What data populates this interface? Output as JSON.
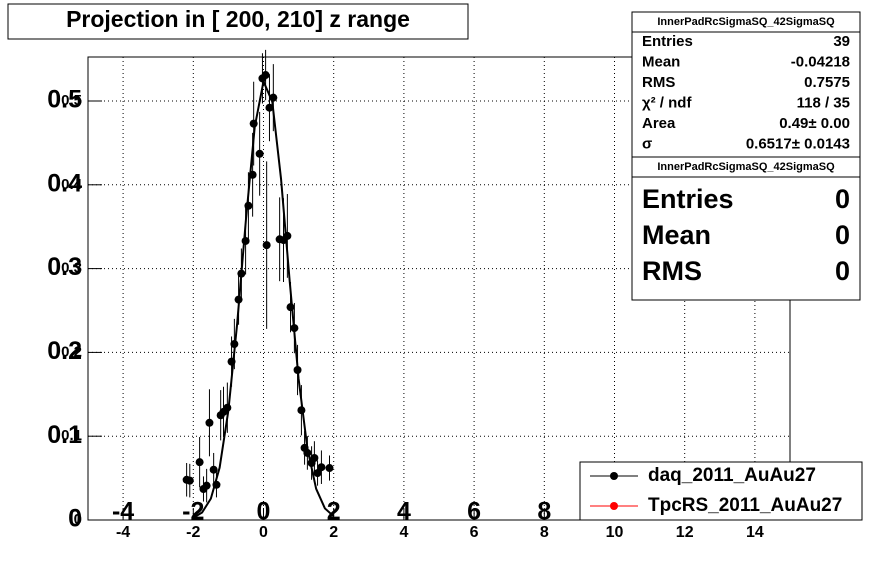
{
  "chart_data": {
    "type": "scatter",
    "title": "Projection in [ 200, 210] z range",
    "xlim": [
      -5,
      15
    ],
    "ylim": [
      0,
      0.5525
    ],
    "xticks": [
      -4,
      -2,
      0,
      2,
      4,
      6,
      8,
      10,
      12,
      14
    ],
    "yticks": [
      0,
      0.1,
      0.2,
      0.3,
      0.4,
      0.5
    ],
    "grid": true,
    "legend": "bottom-right",
    "series": [
      {
        "name": "daq_2011_AuAu27",
        "color": "#000000",
        "x": [
          -2.19,
          -2.1,
          -1.82,
          -1.71,
          -1.62,
          -1.54,
          -1.42,
          -1.34,
          -1.22,
          -1.14,
          -1.03,
          -0.91,
          -0.83,
          -0.71,
          -0.63,
          -0.51,
          -0.43,
          -0.31,
          -0.28,
          -0.11,
          -0.03,
          0.06,
          0.09,
          0.17,
          0.28,
          0.46,
          0.57,
          0.68,
          0.77,
          0.88,
          0.97,
          1.08,
          1.17,
          1.25,
          1.37,
          1.45,
          1.54,
          1.65,
          1.88
        ],
        "values": [
          0.048,
          0.047,
          0.069,
          0.037,
          0.041,
          0.116,
          0.06,
          0.042,
          0.125,
          0.129,
          0.134,
          0.189,
          0.21,
          0.263,
          0.294,
          0.333,
          0.375,
          0.412,
          0.473,
          0.437,
          0.527,
          0.531,
          0.328,
          0.492,
          0.504,
          0.335,
          0.334,
          0.339,
          0.254,
          0.229,
          0.179,
          0.131,
          0.086,
          0.08,
          0.068,
          0.074,
          0.056,
          0.063,
          0.062
        ],
        "errors": [
          0.02,
          0.02,
          0.03,
          0.015,
          0.02,
          0.04,
          0.02,
          0.015,
          0.03,
          0.03,
          0.03,
          0.03,
          0.03,
          0.03,
          0.03,
          0.04,
          0.04,
          0.05,
          0.05,
          0.05,
          0.03,
          0.03,
          0.1,
          0.04,
          0.04,
          0.05,
          0.05,
          0.05,
          0.03,
          0.03,
          0.03,
          0.03,
          0.02,
          0.02,
          0.02,
          0.02,
          0.015,
          0.02,
          0.015
        ]
      },
      {
        "name": "TpcRS_2011_AuAu27",
        "color": "#ff0000",
        "x": [],
        "values": [],
        "errors": []
      }
    ],
    "fit": {
      "color": "#000000",
      "x": [
        -2,
        -1.75,
        -1.5,
        -1.25,
        -1,
        -0.75,
        -0.5,
        -0.25,
        0,
        0.25,
        0.5,
        0.75,
        1,
        1.25,
        1.5,
        1.75,
        2
      ],
      "values": [
        0.0026,
        0.0089,
        0.0255,
        0.0625,
        0.131,
        0.2345,
        0.3587,
        0.469,
        0.5233,
        0.4992,
        0.4069,
        0.2832,
        0.1684,
        0.0856,
        0.0372,
        0.0138,
        0.0044
      ]
    },
    "stats": [
      {
        "title": "InnerPadRcSigmaSQ_42SigmaSQ",
        "rows": [
          {
            "label": "Entries",
            "value": "39"
          },
          {
            "label": "Mean",
            "value": "-0.04218"
          },
          {
            "label": "RMS",
            "value": "0.7575"
          },
          {
            "label": "χ² / ndf",
            "value": "118 / 35"
          },
          {
            "label": "Area",
            "value": "0.49± 0.00"
          },
          {
            "label": "σ",
            "value": "0.6517± 0.0143"
          }
        ]
      },
      {
        "title": "InnerPadRcSigmaSQ_42SigmaSQ",
        "rows": [
          {
            "label": "Entries",
            "value": "0"
          },
          {
            "label": "Mean",
            "value": "0"
          },
          {
            "label": "RMS",
            "value": "0"
          }
        ]
      }
    ]
  }
}
